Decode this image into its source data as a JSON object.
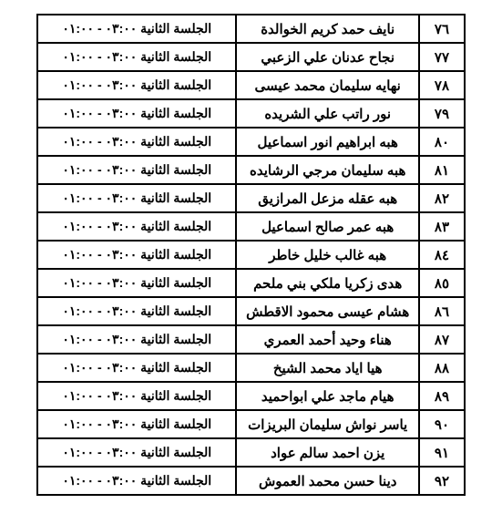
{
  "table": {
    "rows": [
      {
        "num": "٧٦",
        "name": "نايف حمد كريم الخوالدة",
        "session": "الجلسة الثانية ٠٣:٠٠ - ٠١:٠٠"
      },
      {
        "num": "٧٧",
        "name": "نجاح عدنان علي الزعبي",
        "session": "الجلسة الثانية ٠٣:٠٠ - ٠١:٠٠"
      },
      {
        "num": "٧٨",
        "name": "نهايه سليمان محمد عيسى",
        "session": "الجلسة الثانية ٠٣:٠٠ - ٠١:٠٠"
      },
      {
        "num": "٧٩",
        "name": "نور راتب علي الشريده",
        "session": "الجلسة الثانية ٠٣:٠٠ - ٠١:٠٠"
      },
      {
        "num": "٨٠",
        "name": "هبه ابراهيم انور اسماعيل",
        "session": "الجلسة الثانية ٠٣:٠٠ - ٠١:٠٠"
      },
      {
        "num": "٨١",
        "name": "هبه سليمان مرجي الرشايده",
        "session": "الجلسة الثانية ٠٣:٠٠ - ٠١:٠٠"
      },
      {
        "num": "٨٢",
        "name": "هبه عقله مزعل المرازيق",
        "session": "الجلسة الثانية ٠٣:٠٠ - ٠١:٠٠"
      },
      {
        "num": "٨٣",
        "name": "هبه عمر صالح اسماعيل",
        "session": "الجلسة الثانية ٠٣:٠٠ - ٠١:٠٠"
      },
      {
        "num": "٨٤",
        "name": "هبه غالب خليل خاطر",
        "session": "الجلسة الثانية ٠٣:٠٠ - ٠١:٠٠"
      },
      {
        "num": "٨٥",
        "name": "هدى زكريا ملكي بني ملحم",
        "session": "الجلسة الثانية ٠٣:٠٠ - ٠١:٠٠"
      },
      {
        "num": "٨٦",
        "name": "هشام عيسى محمود الاقطش",
        "session": "الجلسة الثانية ٠٣:٠٠ - ٠١:٠٠"
      },
      {
        "num": "٨٧",
        "name": "هناء وحيد أحمد العمري",
        "session": "الجلسة الثانية ٠٣:٠٠ - ٠١:٠٠"
      },
      {
        "num": "٨٨",
        "name": "هيا اياد محمد الشيخ",
        "session": "الجلسة الثانية ٠٣:٠٠ - ٠١:٠٠"
      },
      {
        "num": "٨٩",
        "name": "هيام ماجد علي ابواحميد",
        "session": "الجلسة الثانية ٠٣:٠٠ - ٠١:٠٠"
      },
      {
        "num": "٩٠",
        "name": "ياسر نواش سليمان البريزات",
        "session": "الجلسة الثانية ٠٣:٠٠ - ٠١:٠٠"
      },
      {
        "num": "٩١",
        "name": "يزن احمد سالم عواد",
        "session": "الجلسة الثانية ٠٣:٠٠ - ٠١:٠٠"
      },
      {
        "num": "٩٢",
        "name": "دينا حسن محمد العموش",
        "session": "الجلسة الثانية ٠٣:٠٠ - ٠١:٠٠"
      }
    ]
  }
}
